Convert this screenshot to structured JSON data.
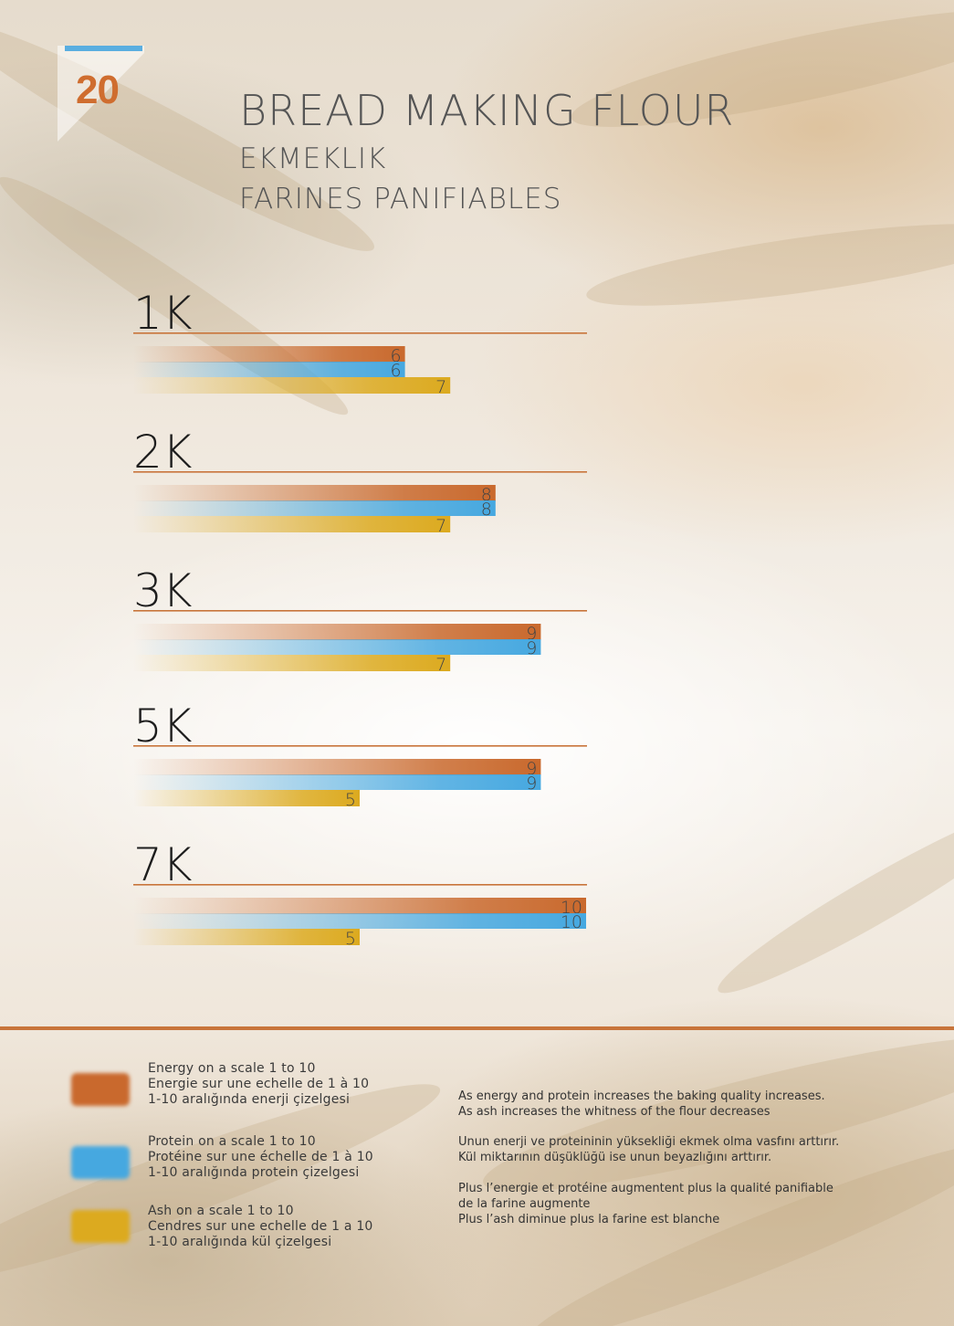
{
  "page_number": "20",
  "header": {
    "title": "BREAD MAKING FLOUR",
    "subtitle_tr": "EKMEKLIK",
    "subtitle_fr": "FARINES PANIFIABLES"
  },
  "colors": {
    "energy": "#c9692d",
    "protein": "#46a8e0",
    "ash": "#dcaa1f",
    "accent": "#c8743a"
  },
  "chart_data": {
    "type": "bar",
    "orientation": "horizontal",
    "scale": [
      0,
      10
    ],
    "groups": [
      {
        "label": "1K",
        "energy": 6,
        "protein": 6,
        "ash": 7
      },
      {
        "label": "2K",
        "energy": 8,
        "protein": 8,
        "ash": 7
      },
      {
        "label": "3K",
        "energy": 9,
        "protein": 9,
        "ash": 7
      },
      {
        "label": "5K",
        "energy": 9,
        "protein": 9,
        "ash": 5
      },
      {
        "label": "7K",
        "energy": 10,
        "protein": 10,
        "ash": 5
      }
    ],
    "series_keys": [
      "energy",
      "protein",
      "ash"
    ]
  },
  "legend": [
    {
      "key": "energy",
      "lines": [
        "Energy on a scale 1 to 10",
        "Energie sur une echelle de 1 à 10",
        " 1-10 aralığında enerji çizelgesi"
      ]
    },
    {
      "key": "protein",
      "lines": [
        "Protein on a scale 1 to 10",
        "Protéine sur une échelle de 1 à 10",
        "1-10 aralığında protein çizelgesi"
      ]
    },
    {
      "key": "ash",
      "lines": [
        "Ash on a scale 1 to 10",
        "Cendres sur une echelle de 1 a 10",
        "1-10 aralığında kül çizelgesi"
      ]
    }
  ],
  "notes": {
    "en": [
      "As energy and protein increases the baking quality increases.",
      "As ash increases the whitness of the flour decreases"
    ],
    "tr": [
      "Unun enerji ve proteininin yüksekliği ekmek olma vasfını arttırır.",
      "Kül miktarının düşüklüğü ise unun beyazlığını arttırır."
    ],
    "fr": [
      "Plus l’energie et protéine augmentent plus la qualité panifiable",
      "de la farine augmente",
      "Plus l’ash diminue plus la farine est blanche"
    ]
  }
}
